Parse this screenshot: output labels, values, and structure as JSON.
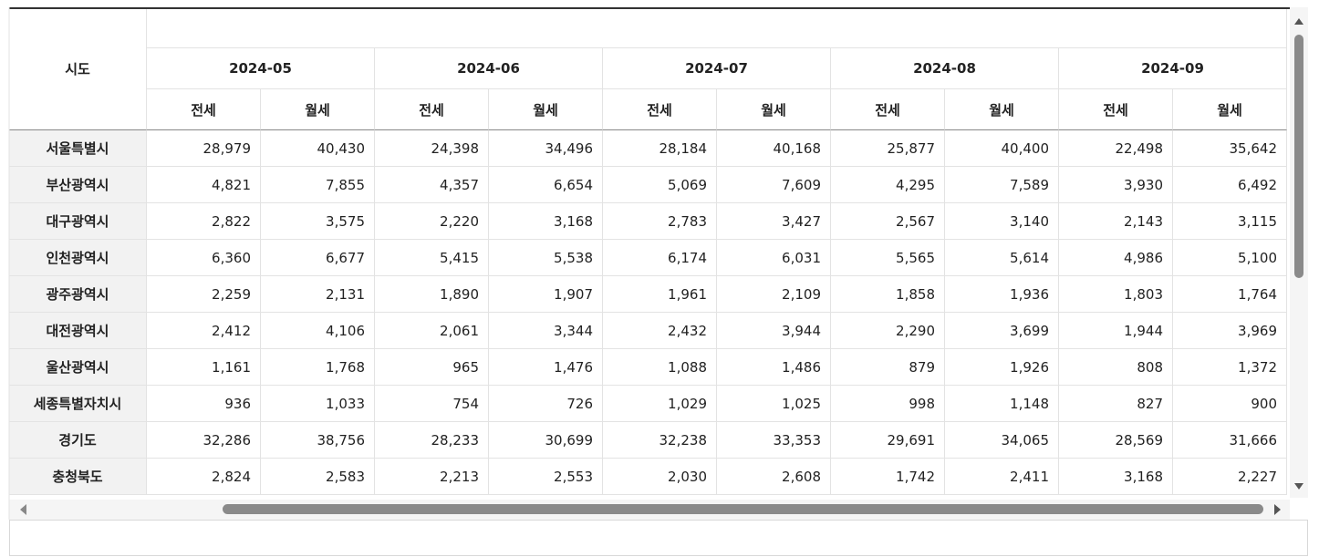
{
  "table": {
    "region_header": "시도",
    "columns": [
      {
        "month": "2024-05",
        "sub": [
          "전세",
          "월세"
        ]
      },
      {
        "month": "2024-06",
        "sub": [
          "전세",
          "월세"
        ]
      },
      {
        "month": "2024-07",
        "sub": [
          "전세",
          "월세"
        ]
      },
      {
        "month": "2024-08",
        "sub": [
          "전세",
          "월세"
        ]
      },
      {
        "month": "2024-09",
        "sub": [
          "전세",
          "월세"
        ]
      }
    ],
    "rows": [
      {
        "region": "서울특별시",
        "values": [
          "28,979",
          "40,430",
          "24,398",
          "34,496",
          "28,184",
          "40,168",
          "25,877",
          "40,400",
          "22,498",
          "35,642"
        ]
      },
      {
        "region": "부산광역시",
        "values": [
          "4,821",
          "7,855",
          "4,357",
          "6,654",
          "5,069",
          "7,609",
          "4,295",
          "7,589",
          "3,930",
          "6,492"
        ]
      },
      {
        "region": "대구광역시",
        "values": [
          "2,822",
          "3,575",
          "2,220",
          "3,168",
          "2,783",
          "3,427",
          "2,567",
          "3,140",
          "2,143",
          "3,115"
        ]
      },
      {
        "region": "인천광역시",
        "values": [
          "6,360",
          "6,677",
          "5,415",
          "5,538",
          "6,174",
          "6,031",
          "5,565",
          "5,614",
          "4,986",
          "5,100"
        ]
      },
      {
        "region": "광주광역시",
        "values": [
          "2,259",
          "2,131",
          "1,890",
          "1,907",
          "1,961",
          "2,109",
          "1,858",
          "1,936",
          "1,803",
          "1,764"
        ]
      },
      {
        "region": "대전광역시",
        "values": [
          "2,412",
          "4,106",
          "2,061",
          "3,344",
          "2,432",
          "3,944",
          "2,290",
          "3,699",
          "1,944",
          "3,969"
        ]
      },
      {
        "region": "울산광역시",
        "values": [
          "1,161",
          "1,768",
          "965",
          "1,476",
          "1,088",
          "1,486",
          "879",
          "1,926",
          "808",
          "1,372"
        ]
      },
      {
        "region": "세종특별자치시",
        "values": [
          "936",
          "1,033",
          "754",
          "726",
          "1,029",
          "1,025",
          "998",
          "1,148",
          "827",
          "900"
        ]
      },
      {
        "region": "경기도",
        "values": [
          "32,286",
          "38,756",
          "28,233",
          "30,699",
          "32,238",
          "33,353",
          "29,691",
          "34,065",
          "28,569",
          "31,666"
        ]
      },
      {
        "region": "충청북도",
        "values": [
          "2,824",
          "2,583",
          "2,213",
          "2,553",
          "2,030",
          "2,608",
          "1,742",
          "2,411",
          "3,168",
          "2,227"
        ]
      }
    ]
  }
}
